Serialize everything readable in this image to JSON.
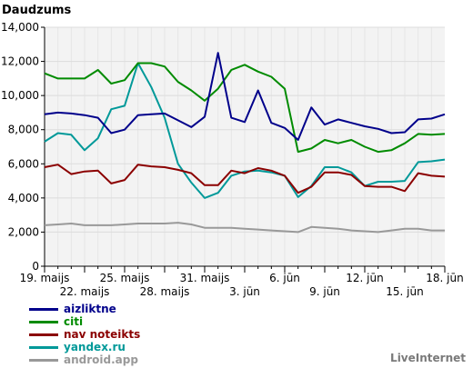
{
  "brand": "LiveInternet",
  "chart_data": {
    "type": "line",
    "title": "Daudzums",
    "xlabel": "",
    "ylabel": "",
    "ylim": [
      0,
      14000
    ],
    "yticks": [
      0,
      2000,
      4000,
      6000,
      8000,
      10000,
      12000,
      14000
    ],
    "ytick_labels": [
      "0",
      "2,000",
      "4,000",
      "6,000",
      "8,000",
      "10,000",
      "12,000",
      "14,000"
    ],
    "grid": true,
    "legend_position": "bottom-left",
    "x": [
      "19. maijs",
      "20",
      "21",
      "22. maijs",
      "23",
      "24",
      "25. maijs",
      "26",
      "27",
      "28. maijs",
      "29",
      "30",
      "31. maijs",
      "1",
      "2",
      "3. jūn",
      "4",
      "5",
      "6. jūn",
      "7",
      "8",
      "9. jūn",
      "10",
      "11",
      "12. jūn",
      "13",
      "14",
      "15. jūn",
      "16",
      "17",
      "18. jūn"
    ],
    "xtick_labels_row1": [
      {
        "index": 0,
        "label": "19. maijs"
      },
      {
        "index": 6,
        "label": "25. maijs"
      },
      {
        "index": 12,
        "label": "31. maijs"
      },
      {
        "index": 18,
        "label": "6. jūn"
      },
      {
        "index": 24,
        "label": "12. jūn"
      },
      {
        "index": 30,
        "label": "18. jūn"
      }
    ],
    "xtick_labels_row2": [
      {
        "index": 3,
        "label": "22. maijs"
      },
      {
        "index": 9,
        "label": "28. maijs"
      },
      {
        "index": 15,
        "label": "3. jūn"
      },
      {
        "index": 21,
        "label": "9. jūn"
      },
      {
        "index": 27,
        "label": "15. jūn"
      }
    ],
    "series": [
      {
        "name": "aizliktne",
        "color": "#00008b",
        "values": [
          8900,
          9000,
          8950,
          8850,
          8700,
          7800,
          8000,
          8850,
          8900,
          8950,
          8550,
          8150,
          8750,
          12500,
          8700,
          8450,
          10300,
          8400,
          8100,
          7400,
          9300,
          8300,
          8600,
          8400,
          8200,
          8050,
          7800,
          7850,
          8600,
          8650,
          8900
        ]
      },
      {
        "name": "citi",
        "color": "#008b00",
        "values": [
          11300,
          11000,
          11000,
          11000,
          11500,
          10700,
          10900,
          11900,
          11900,
          11700,
          10800,
          10300,
          9700,
          10400,
          11500,
          11800,
          11400,
          11100,
          10400,
          6700,
          6900,
          7400,
          7200,
          7400,
          7000,
          6700,
          6800,
          7200,
          7750,
          7700,
          7750
        ]
      },
      {
        "name": "nav noteikts",
        "color": "#8b0000",
        "values": [
          5800,
          5950,
          5400,
          5550,
          5600,
          4850,
          5050,
          5950,
          5850,
          5800,
          5650,
          5450,
          4750,
          4750,
          5600,
          5450,
          5750,
          5600,
          5300,
          4300,
          4650,
          5500,
          5500,
          5350,
          4700,
          4650,
          4650,
          4400,
          5450,
          5300,
          5250
        ]
      },
      {
        "name": "yandex.ru",
        "color": "#009999",
        "values": [
          7300,
          7800,
          7700,
          6800,
          7500,
          9200,
          9400,
          11900,
          10500,
          8700,
          6000,
          4900,
          4000,
          4300,
          5300,
          5550,
          5600,
          5500,
          5300,
          4050,
          4700,
          5800,
          5800,
          5500,
          4700,
          4950,
          4950,
          5000,
          6100,
          6150,
          6250
        ]
      },
      {
        "name": "android.app",
        "color": "#999999",
        "values": [
          2400,
          2450,
          2500,
          2400,
          2400,
          2400,
          2450,
          2500,
          2500,
          2500,
          2550,
          2450,
          2250,
          2250,
          2250,
          2200,
          2150,
          2100,
          2050,
          2000,
          2300,
          2250,
          2200,
          2100,
          2050,
          2000,
          2100,
          2200,
          2200,
          2100,
          2100
        ]
      }
    ]
  }
}
